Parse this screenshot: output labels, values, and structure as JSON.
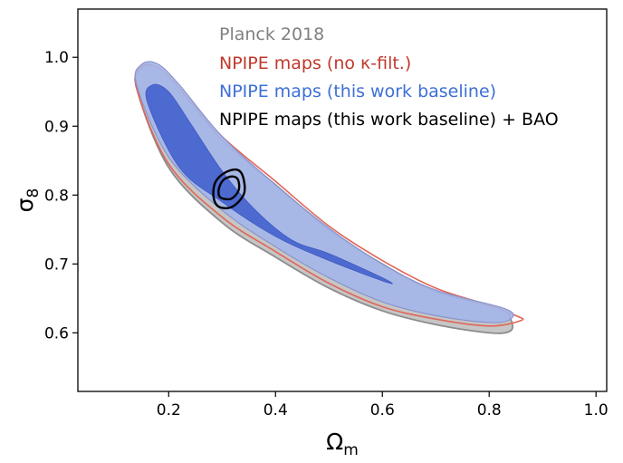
{
  "chart_data": {
    "type": "contour",
    "title": "",
    "xlabel": {
      "symbol": "Ω",
      "subscript": "m"
    },
    "ylabel": {
      "symbol": "σ",
      "subscript": "8"
    },
    "xlim": [
      0.03,
      1.02
    ],
    "ylim": [
      0.515,
      1.07
    ],
    "xticks": [
      0.2,
      0.4,
      0.6,
      0.8,
      1.0
    ],
    "xtick_labels": [
      "0.2",
      "0.4",
      "0.6",
      "0.8",
      "1.0"
    ],
    "yticks": [
      0.6,
      0.7,
      0.8,
      0.9,
      1.0
    ],
    "ytick_labels": [
      "0.6",
      "0.7",
      "0.8",
      "0.9",
      "1.0"
    ],
    "grid": false,
    "legend": {
      "position": "top-right",
      "style": "text-colored"
    },
    "series": [
      {
        "name": "Planck 2018",
        "color": "#808080",
        "fill_outer": "#b3b3b3",
        "edge": "#8c8c8c",
        "outer_contour_95": [
          [
            0.14,
            0.955
          ],
          [
            0.2,
            0.84
          ],
          [
            0.3,
            0.76
          ],
          [
            0.4,
            0.71
          ],
          [
            0.5,
            0.665
          ],
          [
            0.6,
            0.632
          ],
          [
            0.7,
            0.612
          ],
          [
            0.8,
            0.6
          ],
          [
            0.84,
            0.603
          ],
          [
            0.84,
            0.62
          ],
          [
            0.82,
            0.635
          ],
          [
            0.7,
            0.66
          ],
          [
            0.6,
            0.7
          ],
          [
            0.5,
            0.75
          ],
          [
            0.4,
            0.815
          ],
          [
            0.3,
            0.88
          ],
          [
            0.22,
            0.955
          ],
          [
            0.18,
            0.985
          ],
          [
            0.15,
            0.985
          ]
        ]
      },
      {
        "name": "NPIPE maps (no κ-filt.)",
        "color": "#c0392b",
        "edge": "#e06659",
        "outer_contour_95": [
          [
            0.14,
            0.955
          ],
          [
            0.2,
            0.845
          ],
          [
            0.3,
            0.768
          ],
          [
            0.4,
            0.718
          ],
          [
            0.5,
            0.672
          ],
          [
            0.6,
            0.638
          ],
          [
            0.7,
            0.62
          ],
          [
            0.8,
            0.61
          ],
          [
            0.86,
            0.618
          ],
          [
            0.85,
            0.625
          ],
          [
            0.8,
            0.64
          ],
          [
            0.7,
            0.665
          ],
          [
            0.6,
            0.705
          ],
          [
            0.5,
            0.755
          ],
          [
            0.4,
            0.82
          ],
          [
            0.3,
            0.885
          ],
          [
            0.22,
            0.955
          ],
          [
            0.18,
            0.985
          ],
          [
            0.15,
            0.987
          ]
        ]
      },
      {
        "name": "NPIPE maps (this work baseline)",
        "color": "#3d6fd6",
        "fill_outer": "#a4b6ea",
        "fill_inner": "#4a68cf",
        "outer_contour_95": [
          [
            0.14,
            0.96
          ],
          [
            0.2,
            0.855
          ],
          [
            0.3,
            0.778
          ],
          [
            0.4,
            0.725
          ],
          [
            0.5,
            0.68
          ],
          [
            0.6,
            0.645
          ],
          [
            0.7,
            0.625
          ],
          [
            0.8,
            0.615
          ],
          [
            0.84,
            0.62
          ],
          [
            0.83,
            0.635
          ],
          [
            0.7,
            0.662
          ],
          [
            0.6,
            0.7
          ],
          [
            0.5,
            0.752
          ],
          [
            0.4,
            0.815
          ],
          [
            0.3,
            0.885
          ],
          [
            0.22,
            0.96
          ],
          [
            0.18,
            0.99
          ],
          [
            0.15,
            0.99
          ]
        ],
        "inner_contour_68": [
          [
            0.16,
            0.935
          ],
          [
            0.22,
            0.84
          ],
          [
            0.3,
            0.79
          ],
          [
            0.4,
            0.74
          ],
          [
            0.5,
            0.705
          ],
          [
            0.61,
            0.673
          ],
          [
            0.6,
            0.68
          ],
          [
            0.5,
            0.715
          ],
          [
            0.43,
            0.735
          ],
          [
            0.36,
            0.78
          ],
          [
            0.3,
            0.835
          ],
          [
            0.24,
            0.905
          ],
          [
            0.2,
            0.95
          ],
          [
            0.17,
            0.96
          ]
        ]
      },
      {
        "name": "NPIPE maps (this work baseline) + BAO",
        "color": "#000000",
        "center": [
          0.314,
          0.81
        ],
        "outer_contour_95": [
          [
            0.294,
            0.783
          ],
          [
            0.319,
            0.783
          ],
          [
            0.341,
            0.802
          ],
          [
            0.339,
            0.827
          ],
          [
            0.327,
            0.837
          ],
          [
            0.304,
            0.832
          ],
          [
            0.287,
            0.818
          ],
          [
            0.284,
            0.797
          ]
        ],
        "inner_contour_68": [
          [
            0.301,
            0.795
          ],
          [
            0.318,
            0.795
          ],
          [
            0.331,
            0.807
          ],
          [
            0.33,
            0.822
          ],
          [
            0.32,
            0.827
          ],
          [
            0.304,
            0.823
          ],
          [
            0.295,
            0.812
          ],
          [
            0.294,
            0.8
          ]
        ]
      }
    ]
  }
}
